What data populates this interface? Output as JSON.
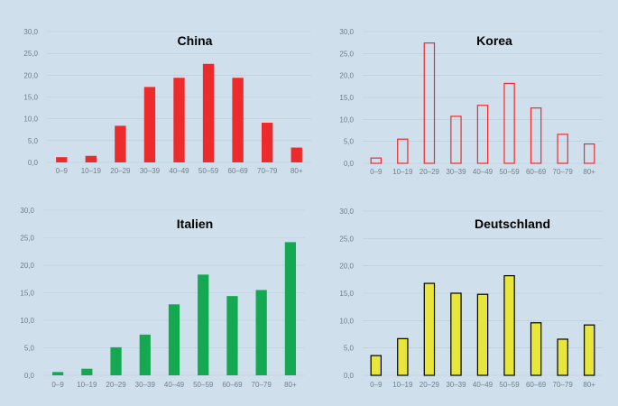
{
  "chart_data": [
    {
      "type": "bar",
      "title": "China",
      "categories": [
        "0–9",
        "10–19",
        "20–29",
        "30–39",
        "40–49",
        "50–59",
        "60–69",
        "70–79",
        "80+"
      ],
      "values": [
        1.2,
        1.5,
        8.4,
        17.3,
        19.4,
        22.6,
        19.4,
        9.1,
        3.4
      ],
      "ylim": [
        0,
        30
      ],
      "yticks": [
        "0,0",
        "5,0",
        "10,0",
        "15,0",
        "20,0",
        "25,0",
        "30,0"
      ],
      "grid": true,
      "color": "#ee2b2b",
      "style": "filled"
    },
    {
      "type": "bar",
      "title": "Korea",
      "categories": [
        "0–9",
        "10–19",
        "20–29",
        "30–39",
        "40–49",
        "50–59",
        "60–69",
        "70–79",
        "80+"
      ],
      "values": [
        1.2,
        5.5,
        27.4,
        10.7,
        13.2,
        18.2,
        12.6,
        6.6,
        4.4
      ],
      "ylim": [
        0,
        30
      ],
      "yticks": [
        "0,0",
        "5,0",
        "10,0",
        "15,0",
        "20,0",
        "25,0",
        "30,0"
      ],
      "grid": true,
      "color": "#ee2b2b",
      "style": "outline"
    },
    {
      "type": "bar",
      "title": "Italien",
      "categories": [
        "0–9",
        "10–19",
        "20–29",
        "30–39",
        "40–49",
        "50–59",
        "60–69",
        "70–79",
        "80+"
      ],
      "values": [
        0.6,
        1.2,
        5.1,
        7.4,
        12.9,
        18.3,
        14.4,
        15.5,
        24.2
      ],
      "ylim": [
        0,
        30
      ],
      "yticks": [
        "0,0",
        "5,0",
        "10,0",
        "15,0",
        "20,0",
        "25,0",
        "30,0"
      ],
      "grid": true,
      "color": "#14a850",
      "style": "filled"
    },
    {
      "type": "bar",
      "title": "Deutschland",
      "categories": [
        "0–9",
        "10–19",
        "20–29",
        "30–39",
        "40–49",
        "50–59",
        "60–69",
        "70–79",
        "80+"
      ],
      "values": [
        3.6,
        6.7,
        16.8,
        15.0,
        14.8,
        18.2,
        9.6,
        6.6,
        9.2
      ],
      "ylim": [
        0,
        30
      ],
      "yticks": [
        "0,0",
        "5,0",
        "10,0",
        "15,0",
        "20,0",
        "25,0",
        "30,0"
      ],
      "grid": true,
      "color": "#e8e63a",
      "stroke": "#000000",
      "style": "filled-outlined"
    }
  ]
}
